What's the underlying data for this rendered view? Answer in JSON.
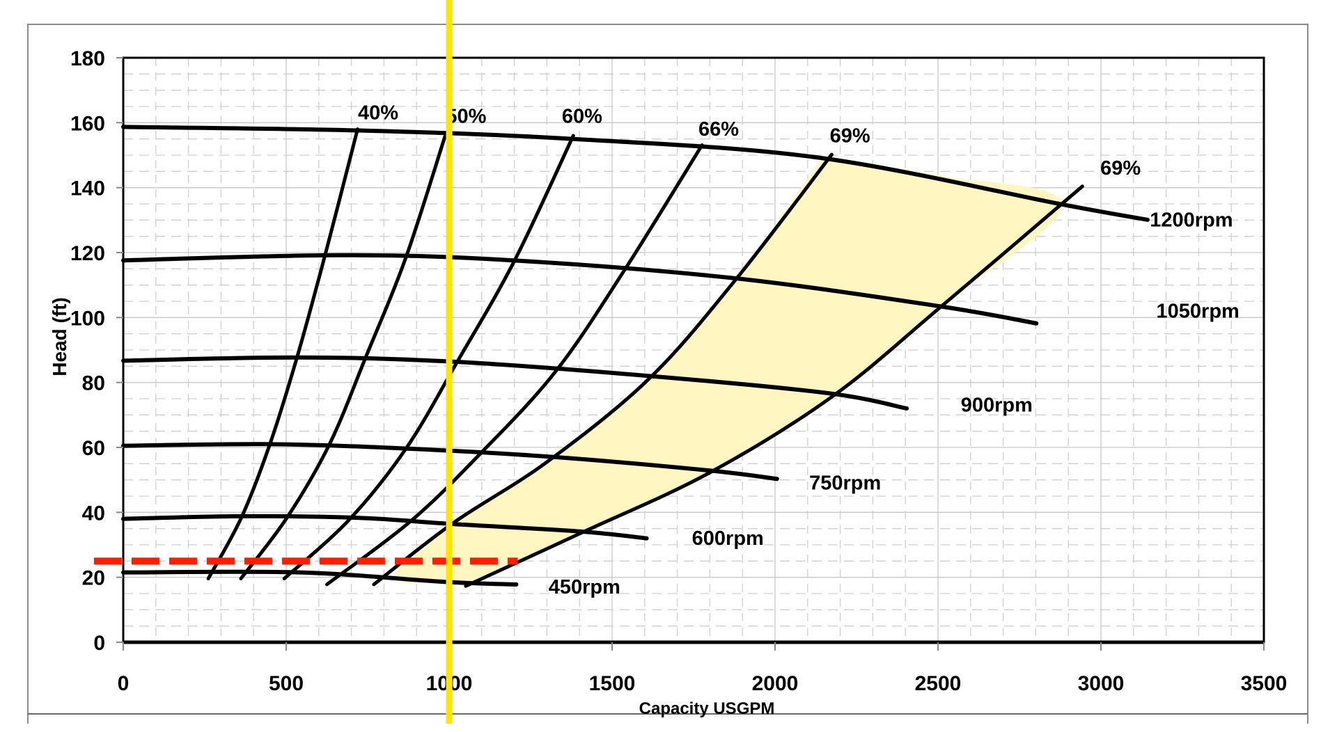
{
  "chart_data": {
    "type": "line",
    "title": "",
    "xlabel": "Capacity USGPM",
    "ylabel": "Head (ft)",
    "xlim": [
      0,
      3500
    ],
    "ylim": [
      0,
      180
    ],
    "x_ticks": [
      0,
      500,
      1000,
      1500,
      2000,
      2500,
      3000,
      3500
    ],
    "y_ticks": [
      0,
      20,
      40,
      60,
      80,
      100,
      120,
      140,
      160,
      180
    ],
    "grid": {
      "major": true,
      "minor_dashed": true,
      "x_minor_step": 100,
      "y_minor_step": 5
    },
    "speed_curves": [
      {
        "name": "1200rpm",
        "label": "1200rpm",
        "label_pos": [
          3150,
          128
        ],
        "points": [
          [
            0,
            158.7
          ],
          [
            725,
            157.6
          ],
          [
            1378,
            155
          ],
          [
            2137,
            149.2
          ],
          [
            2882,
            134.8
          ],
          [
            3143,
            130.1
          ]
        ]
      },
      {
        "name": "1050rpm",
        "label": "1050rpm",
        "label_pos": [
          3170,
          100
        ],
        "points": [
          [
            0,
            117.6
          ],
          [
            672,
            119.2
          ],
          [
            1195,
            117.6
          ],
          [
            1876,
            112.1
          ],
          [
            2503,
            103.5
          ],
          [
            2802,
            98.2
          ]
        ]
      },
      {
        "name": "900rpm",
        "label": "900rpm",
        "label_pos": [
          2570,
          71
        ],
        "points": [
          [
            0,
            86.7
          ],
          [
            541,
            87.7
          ],
          [
            1012,
            86.4
          ],
          [
            1614,
            82
          ],
          [
            2163,
            76.7
          ],
          [
            2404,
            72
          ]
        ]
      },
      {
        "name": "750rpm",
        "label": "750rpm",
        "label_pos": [
          2105,
          47
        ],
        "points": [
          [
            0,
            60.5
          ],
          [
            450,
            61
          ],
          [
            855,
            59.7
          ],
          [
            1313,
            57.1
          ],
          [
            1797,
            52.9
          ],
          [
            2006,
            50.3
          ]
        ]
      },
      {
        "name": "600rpm",
        "label": "600rpm",
        "label_pos": [
          1745,
          30
        ],
        "points": [
          [
            0,
            38
          ],
          [
            366,
            38.8
          ],
          [
            724,
            38.3
          ],
          [
            1012,
            36.4
          ],
          [
            1405,
            34.1
          ],
          [
            1606,
            32
          ]
        ]
      },
      {
        "name": "450rpm",
        "label": "450rpm",
        "label_pos": [
          1305,
          15
        ],
        "points": [
          [
            0,
            21.5
          ],
          [
            541,
            21.5
          ],
          [
            986,
            18.6
          ],
          [
            1206,
            17.8
          ]
        ]
      }
    ],
    "efficiency_curves": [
      {
        "name": "40%",
        "label": "40%",
        "label_pos": [
          720,
          161
        ],
        "points": [
          [
            719,
            158
          ],
          [
            620,
            119.5
          ],
          [
            534,
            88
          ],
          [
            450,
            61
          ],
          [
            363,
            38.5
          ],
          [
            261,
            19.6
          ]
        ]
      },
      {
        "name": "50%",
        "label": "50%",
        "label_pos": [
          990,
          160
        ],
        "points": [
          [
            991,
            157
          ],
          [
            868,
            118.7
          ],
          [
            745,
            88
          ],
          [
            633,
            61
          ],
          [
            502,
            38.3
          ],
          [
            361,
            19.6
          ]
        ]
      },
      {
        "name": "60%",
        "label": "60%",
        "label_pos": [
          1346,
          160
        ],
        "points": [
          [
            1381,
            156
          ],
          [
            1200,
            117.4
          ],
          [
            1025,
            86.4
          ],
          [
            868,
            59.7
          ],
          [
            693,
            37.7
          ],
          [
            494,
            19.6
          ]
        ]
      },
      {
        "name": "66%",
        "label": "66%",
        "label_pos": [
          1765,
          156
        ],
        "points": [
          [
            1776,
            153.1
          ],
          [
            1538,
            114.6
          ],
          [
            1326,
            83.3
          ],
          [
            1091,
            57.6
          ],
          [
            881,
            37.2
          ],
          [
            625,
            17.8
          ]
        ]
      },
      {
        "name": "69%",
        "label": "69%",
        "label_pos": [
          2168,
          154
        ],
        "points": [
          [
            2174,
            150.2
          ],
          [
            1881,
            111.9
          ],
          [
            1614,
            81.2
          ],
          [
            1300,
            55.5
          ],
          [
            1012,
            36.7
          ],
          [
            769,
            17.8
          ]
        ]
      },
      {
        "name": "69%",
        "label": "69%",
        "label_pos": [
          2998,
          144
        ],
        "points": [
          [
            2943,
            140.4
          ],
          [
            2511,
            103.5
          ],
          [
            2176,
            75.7
          ],
          [
            1797,
            52.1
          ],
          [
            1408,
            33.8
          ],
          [
            1051,
            17.3
          ]
        ]
      }
    ],
    "shaded_region": {
      "color": "#FFF6C2",
      "polygon": [
        [
          2145,
          149.5
        ],
        [
          2500,
          143.8
        ],
        [
          2882,
          134.8
        ],
        [
          2511,
          103.5
        ],
        [
          2176,
          75.7
        ],
        [
          1797,
          52.1
        ],
        [
          1408,
          33.8
        ],
        [
          1095,
          19.8
        ],
        [
          986,
          18.6
        ],
        [
          830,
          20.2
        ],
        [
          1012,
          36.7
        ],
        [
          1300,
          55.5
        ],
        [
          1614,
          81.2
        ],
        [
          1881,
          111.9
        ]
      ]
    },
    "annotations": {
      "operating_head_line": {
        "head": 25,
        "x_from": -90,
        "x_to": 1210,
        "color": "#FF1E00",
        "style": "dashed"
      },
      "operating_flow_line": {
        "gpm": 1000,
        "color": "#FFE600",
        "style": "solid"
      }
    }
  },
  "colors": {
    "curve": "#000000",
    "grid_major": "#c8c8cc",
    "grid_minor": "#cfcfd2",
    "frame": "#8a8a8a"
  }
}
